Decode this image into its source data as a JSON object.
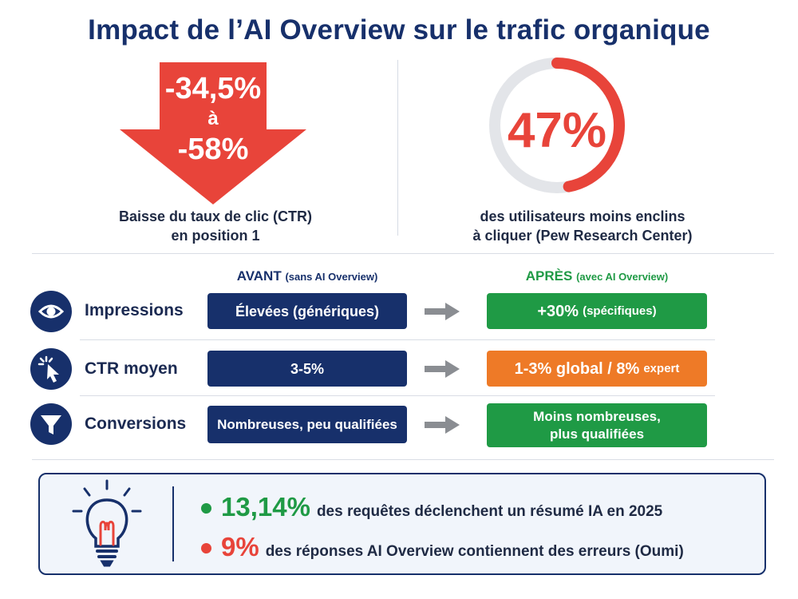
{
  "title": "Impact de l’AI Overview sur le trafic organique",
  "ctr_drop": {
    "from": "-34,5%",
    "connector": "à",
    "to": "-58%",
    "caption_line1": "Baisse du taux de clic (CTR)",
    "caption_line2": "en position 1",
    "color": "#e8443a"
  },
  "users_stat": {
    "value": "47%",
    "ring_fraction": 0.47,
    "caption_line1": "des utilisateurs moins enclins",
    "caption_line2": "à cliquer (Pew Research Center)",
    "color": "#e8443a"
  },
  "comparison": {
    "before_header": "AVANT",
    "before_sub": "(sans AI Overview)",
    "after_header": "APRÈS",
    "after_sub": "(avec AI Overview)",
    "rows": [
      {
        "icon": "eye-icon",
        "label": "Impressions",
        "before": "Élevées (génériques)",
        "after_main": "+30%",
        "after_sub": "(spécifiques)",
        "after_color": "#1f9a45"
      },
      {
        "icon": "cursor-click-icon",
        "label": "CTR moyen",
        "before": "3-5%",
        "after_main": "1-3% global / 8%",
        "after_sub": "expert",
        "after_color": "#ee7a27"
      },
      {
        "icon": "funnel-icon",
        "label": "Conversions",
        "before": "Nombreuses, peu qualifiées",
        "after_line1": "Moins nombreuses,",
        "after_line2": "plus qualifiées",
        "after_color": "#1f9a45"
      }
    ]
  },
  "facts": [
    {
      "value": "13,14%",
      "text": "des requêtes déclenchent un résumé IA en 2025",
      "color": "#1f9a45"
    },
    {
      "value": "9%",
      "text": "des réponses AI Overview contiennent des erreurs (Oumi)",
      "color": "#e8443a"
    }
  ],
  "icons": {
    "panel": "lightbulb-icon"
  },
  "colors": {
    "navy": "#17306b",
    "green": "#1f9a45",
    "orange": "#ee7a27",
    "red": "#e8443a"
  }
}
